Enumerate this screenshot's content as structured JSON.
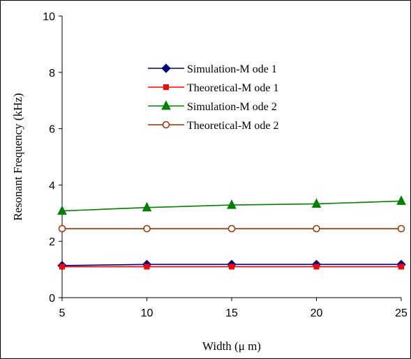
{
  "chart_data": {
    "type": "line",
    "title": "",
    "xlabel": "Width (μ m)",
    "ylabel": "Resonant Frequency (kHz)",
    "xlim": [
      5,
      25
    ],
    "ylim": [
      0,
      10
    ],
    "x_ticks": [
      "5",
      "10",
      "15",
      "20",
      "25"
    ],
    "y_ticks": [
      "0",
      "2",
      "4",
      "6",
      "8",
      "10"
    ],
    "grid": false,
    "legend_position": "upper-center",
    "x": [
      5,
      10,
      15,
      20,
      25
    ],
    "series": [
      {
        "name": "Simulation-M ode 1",
        "values": [
          1.14,
          1.18,
          1.18,
          1.18,
          1.18
        ],
        "color": "#000080",
        "marker": "diamond"
      },
      {
        "name": "Theoretical-M ode 1",
        "values": [
          1.1,
          1.1,
          1.1,
          1.1,
          1.1
        ],
        "color": "#ff0000",
        "marker": "square"
      },
      {
        "name": "Simulation-M ode 2",
        "values": [
          3.08,
          3.2,
          3.29,
          3.33,
          3.43
        ],
        "color": "#008000",
        "marker": "triangle"
      },
      {
        "name": "Theoretical-M ode 2",
        "values": [
          2.45,
          2.45,
          2.45,
          2.45,
          2.45
        ],
        "color": "#993300",
        "marker": "circle-open"
      }
    ]
  }
}
